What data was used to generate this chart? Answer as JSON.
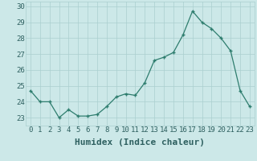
{
  "x": [
    0,
    1,
    2,
    3,
    4,
    5,
    6,
    7,
    8,
    9,
    10,
    11,
    12,
    13,
    14,
    15,
    16,
    17,
    18,
    19,
    20,
    21,
    22,
    23
  ],
  "y": [
    24.7,
    24.0,
    24.0,
    23.0,
    23.5,
    23.1,
    23.1,
    23.2,
    23.7,
    24.3,
    24.5,
    24.4,
    25.2,
    26.6,
    26.8,
    27.1,
    28.2,
    29.7,
    29.0,
    28.6,
    28.0,
    27.2,
    24.7,
    23.7
  ],
  "line_color": "#2e7d6e",
  "marker": "+",
  "marker_size": 3,
  "bg_color": "#cce8e8",
  "grid_color": "#aacfcf",
  "xlabel": "Humidex (Indice chaleur)",
  "xlim": [
    -0.5,
    23.5
  ],
  "ylim": [
    22.5,
    30.3
  ],
  "yticks": [
    23,
    24,
    25,
    26,
    27,
    28,
    29,
    30
  ],
  "xticks": [
    0,
    1,
    2,
    3,
    4,
    5,
    6,
    7,
    8,
    9,
    10,
    11,
    12,
    13,
    14,
    15,
    16,
    17,
    18,
    19,
    20,
    21,
    22,
    23
  ],
  "tick_fontsize": 6.5,
  "xlabel_fontsize": 8,
  "axis_color": "#2e6060"
}
